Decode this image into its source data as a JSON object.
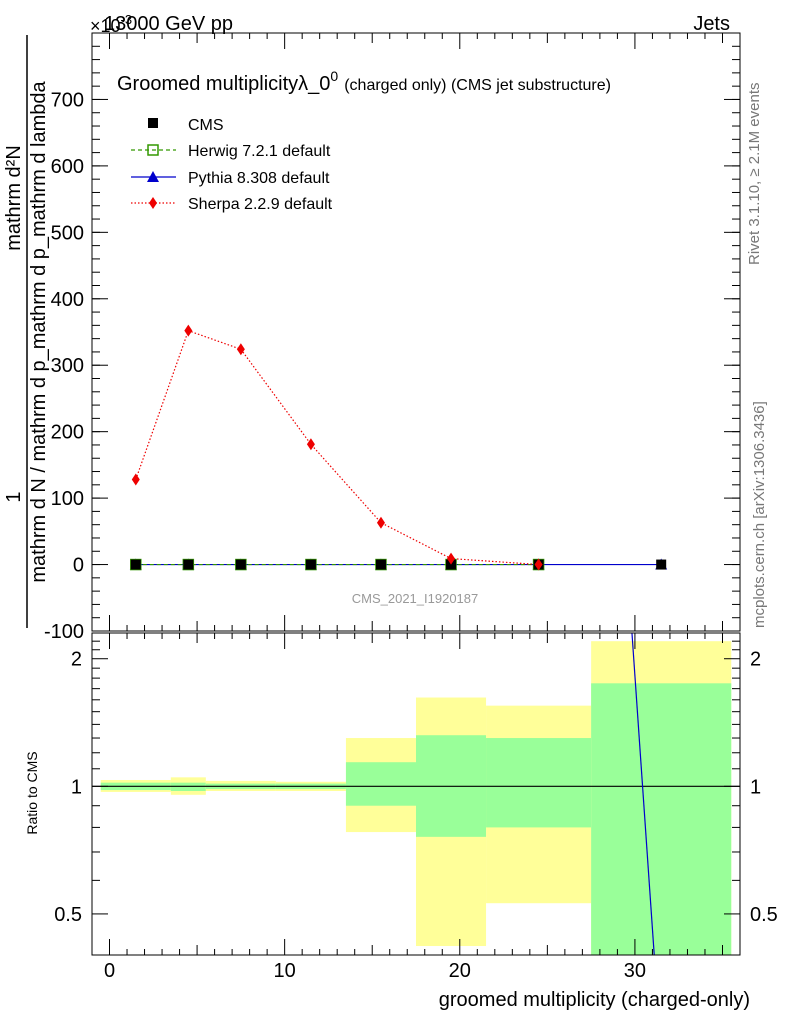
{
  "header": {
    "left": "13000 GeV pp",
    "right": "Jets",
    "exponent_label": "×10",
    "exponent_power": "-3"
  },
  "side_text": {
    "rivet": "Rivet 3.1.10, ≥ 2.1M events",
    "mcplots": "mcplots.cern.ch [arXiv:1306.3436]"
  },
  "colors": {
    "cms": "#000000",
    "herwig": "#339900",
    "pythia": "#0000cc",
    "sherpa": "#ee0000",
    "band_outer": "#ffff99",
    "band_inner": "#99ff99"
  },
  "chart_data": [
    {
      "type": "line",
      "title": "Groomed multiplicityλ_0",
      "title_sup": "0",
      "title_suffix": "(charged only) (CMS jet substructure)",
      "ylabel_top": "1",
      "ylabel_numerator": "mathrm d²N",
      "ylabel_denominator": "mathrm d N / mathrm d p_mathrm d p_mathrm d lambda",
      "xlim": [
        -1,
        36
      ],
      "ylim": [
        -100,
        800
      ],
      "yticks": [
        -100,
        0,
        100,
        200,
        300,
        400,
        500,
        600,
        700
      ],
      "watermark": "CMS_2021_I1920187",
      "legend_position": "top-left",
      "legend": [
        "CMS",
        "Herwig 7.2.1 default",
        "Pythia 8.308 default",
        "Sherpa 2.2.9 default"
      ],
      "x": [
        1.5,
        4.5,
        7.5,
        11.5,
        15.5,
        19.5,
        24.5,
        31.5
      ],
      "series": [
        {
          "name": "CMS",
          "x": [
            1.5,
            4.5,
            7.5,
            11.5,
            15.5,
            19.5,
            24.5,
            31.5
          ],
          "values": [
            0,
            0,
            0,
            0,
            0,
            0,
            0,
            0
          ]
        },
        {
          "name": "Herwig 7.2.1 default",
          "x": [
            1.5,
            4.5,
            7.5,
            11.5,
            15.5,
            19.5,
            24.5
          ],
          "values": [
            0,
            0,
            0,
            0,
            0,
            0,
            0
          ]
        },
        {
          "name": "Pythia 8.308 default",
          "x": [
            1.5,
            4.5,
            7.5,
            11.5,
            15.5,
            19.5,
            24.5,
            31.5
          ],
          "values": [
            0,
            0,
            0,
            0,
            0,
            0,
            0,
            0
          ]
        },
        {
          "name": "Sherpa 2.2.9 default",
          "x": [
            1.5,
            4.5,
            7.5,
            11.5,
            15.5,
            19.5,
            24.5
          ],
          "values": [
            128,
            352,
            324,
            181,
            63,
            9,
            0
          ]
        }
      ]
    },
    {
      "type": "area",
      "ylabel": "Ratio to CMS",
      "xlabel": "groomed multiplicity (charged-only)",
      "xlim": [
        -1,
        36
      ],
      "ylim": [
        0.4,
        2.3
      ],
      "yscale": "log",
      "yticks": [
        0.5,
        1,
        2
      ],
      "xticks": [
        0,
        10,
        20,
        30
      ],
      "bins": [
        {
          "lo": -0.5,
          "hi": 3.5,
          "outer": [
            0.97,
            1.035
          ],
          "inner": [
            0.98,
            1.02
          ]
        },
        {
          "lo": 3.5,
          "hi": 5.5,
          "outer": [
            0.955,
            1.05
          ],
          "inner": [
            0.975,
            1.02
          ]
        },
        {
          "lo": 5.5,
          "hi": 9.5,
          "outer": [
            0.975,
            1.03
          ],
          "inner": [
            0.985,
            1.015
          ]
        },
        {
          "lo": 9.5,
          "hi": 13.5,
          "outer": [
            0.975,
            1.025
          ],
          "inner": [
            0.985,
            1.015
          ]
        },
        {
          "lo": 13.5,
          "hi": 17.5,
          "outer": [
            0.78,
            1.3
          ],
          "inner": [
            0.9,
            1.14
          ]
        },
        {
          "lo": 17.5,
          "hi": 21.5,
          "outer": [
            0.42,
            1.62
          ],
          "inner": [
            0.76,
            1.32
          ]
        },
        {
          "lo": 21.5,
          "hi": 27.5,
          "outer": [
            0.53,
            1.55
          ],
          "inner": [
            0.8,
            1.3
          ]
        },
        {
          "lo": 27.5,
          "hi": 35.5,
          "outer": [
            0.33,
            2.2
          ],
          "inner": [
            0.33,
            1.75
          ]
        }
      ],
      "pythia_ratio_line": {
        "x": [
          29.8,
          31.2
        ],
        "values": [
          2.4,
          0.35
        ]
      }
    }
  ]
}
